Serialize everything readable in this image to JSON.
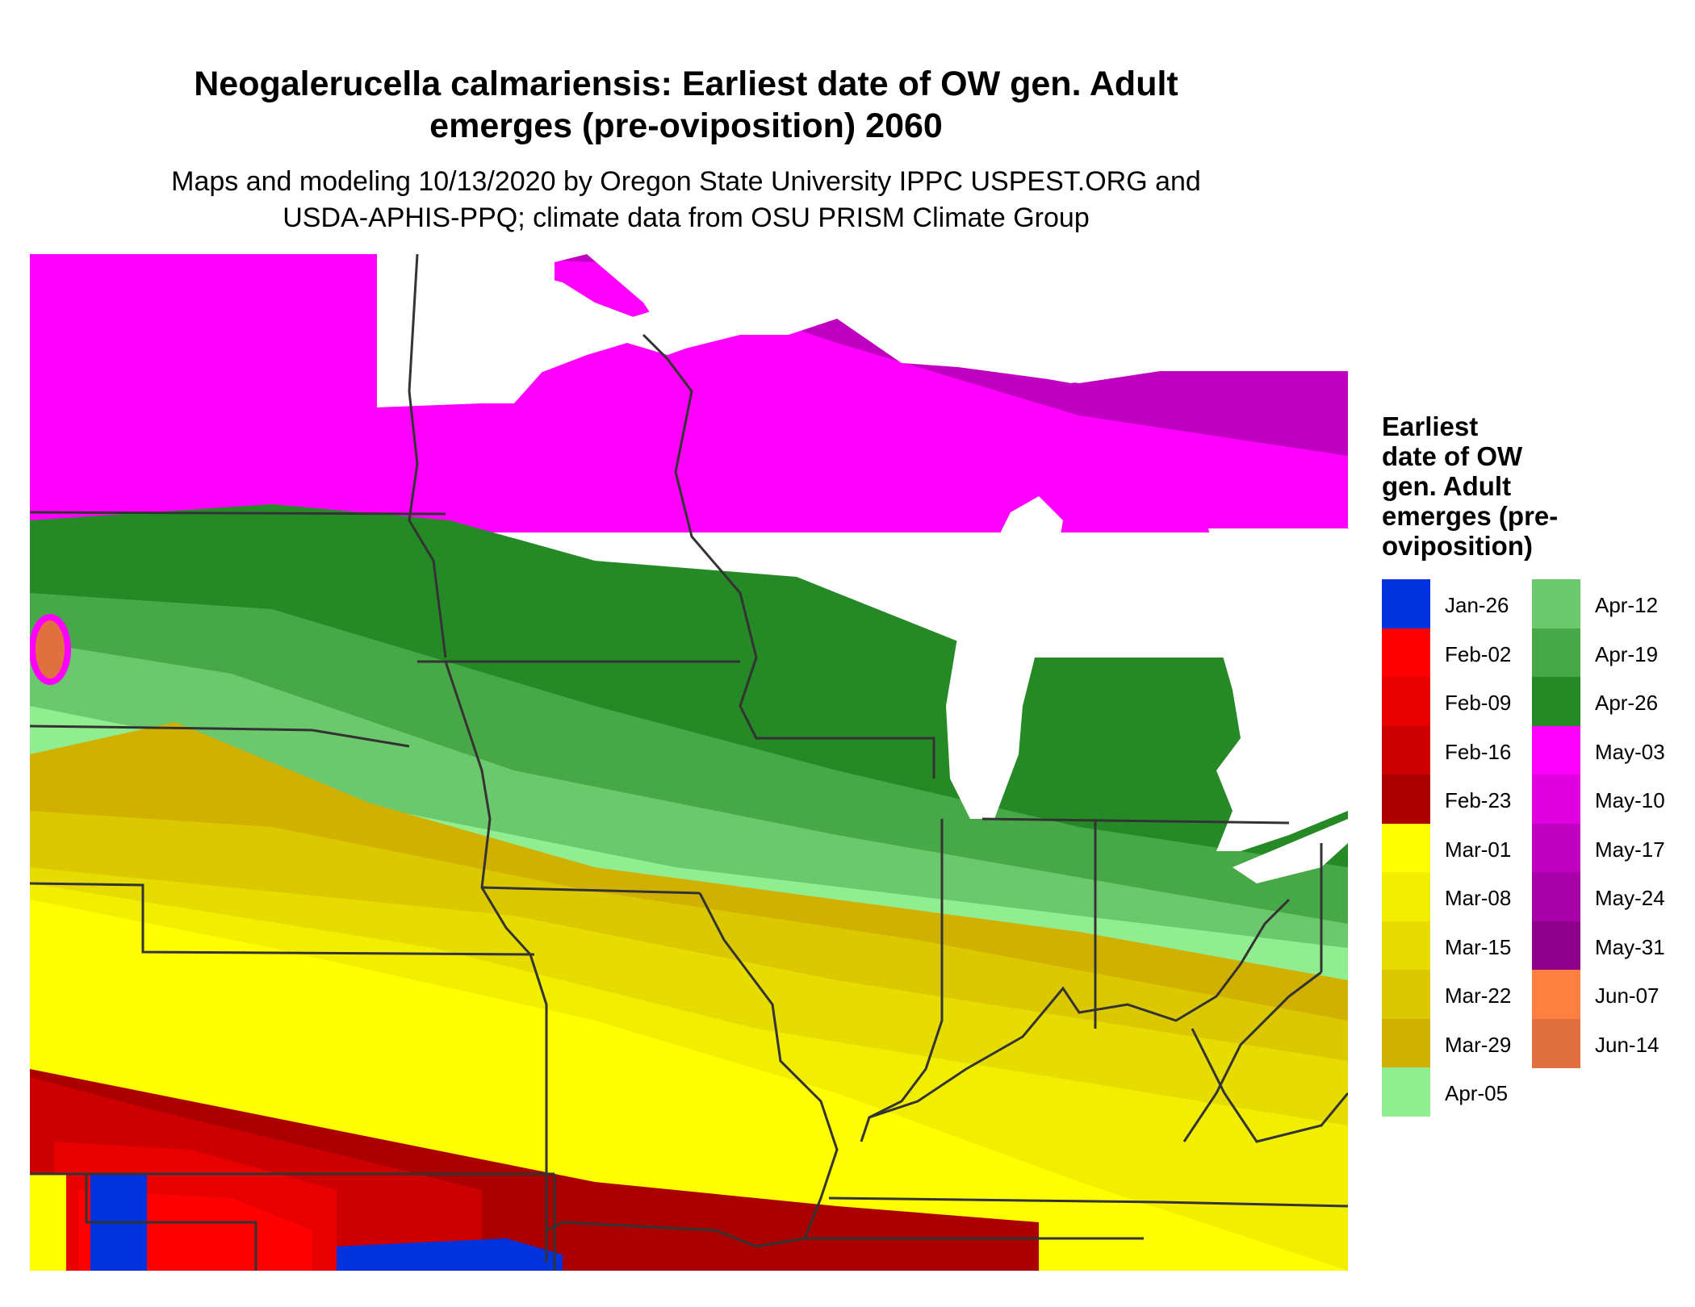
{
  "title": {
    "line1": "Neogalerucella calmariensis: Earliest date of OW gen. Adult",
    "line2": "emerges (pre-oviposition) 2060"
  },
  "subtitle": {
    "line1": "Maps and modeling 10/13/2020 by Oregon State University IPPC USPEST.ORG and",
    "line2": "USDA-APHIS-PPQ; climate data from OSU PRISM Climate Group"
  },
  "legend": {
    "title_lines": [
      "Earliest",
      "date of OW",
      "gen. Adult",
      "emerges (pre-",
      "oviposition)"
    ],
    "items": [
      {
        "label": "Jan-26",
        "color": "#0033dd"
      },
      {
        "label": "Feb-02",
        "color": "#ff0000"
      },
      {
        "label": "Feb-09",
        "color": "#e80000"
      },
      {
        "label": "Feb-16",
        "color": "#cc0000"
      },
      {
        "label": "Feb-23",
        "color": "#aa0000"
      },
      {
        "label": "Mar-01",
        "color": "#ffff00"
      },
      {
        "label": "Mar-08",
        "color": "#f2ee00"
      },
      {
        "label": "Mar-15",
        "color": "#e6dc00"
      },
      {
        "label": "Mar-22",
        "color": "#dcc800"
      },
      {
        "label": "Mar-29",
        "color": "#d0b000"
      },
      {
        "label": "Apr-05",
        "color": "#90ee90"
      },
      {
        "label": "Apr-12",
        "color": "#6cc86c"
      },
      {
        "label": "Apr-19",
        "color": "#46a846"
      },
      {
        "label": "Apr-26",
        "color": "#258a25"
      },
      {
        "label": "May-03",
        "color": "#ff00ff"
      },
      {
        "label": "May-10",
        "color": "#e000e0"
      },
      {
        "label": "May-17",
        "color": "#c000c0"
      },
      {
        "label": "May-24",
        "color": "#a800a8"
      },
      {
        "label": "May-31",
        "color": "#8c008c"
      },
      {
        "label": "Jun-07",
        "color": "#ff8040"
      },
      {
        "label": "Jun-14",
        "color": "#e07040"
      }
    ]
  },
  "map": {
    "water_color": "#ffffff",
    "border_color": "#333333"
  }
}
